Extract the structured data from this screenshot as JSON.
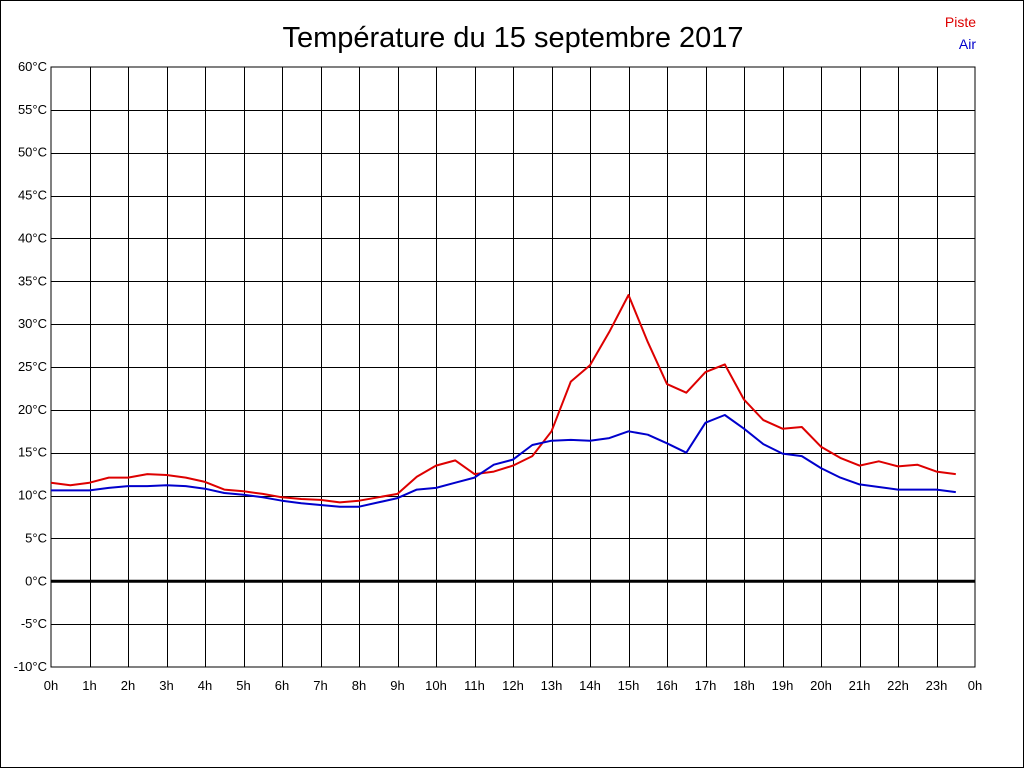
{
  "chart_data": {
    "type": "line",
    "title": "Température du 15 septembre 2017",
    "xlabel": "",
    "ylabel": "",
    "ylim": [
      -10,
      60
    ],
    "y_step": 5,
    "y_unit": "°C",
    "x_range": [
      0,
      24
    ],
    "x_tick_labels": [
      "0h",
      "1h",
      "2h",
      "3h",
      "4h",
      "5h",
      "6h",
      "7h",
      "8h",
      "9h",
      "10h",
      "11h",
      "12h",
      "13h",
      "14h",
      "15h",
      "16h",
      "17h",
      "18h",
      "19h",
      "20h",
      "21h",
      "22h",
      "23h",
      "0h"
    ],
    "y_tick_labels": [
      "60°C",
      "55°C",
      "50°C",
      "45°C",
      "40°C",
      "35°C",
      "30°C",
      "25°C",
      "20°C",
      "15°C",
      "10°C",
      "5°C",
      "0°C",
      "-5°C",
      "-10°C"
    ],
    "grid": true,
    "zero_line": true,
    "legend_position": "top-right",
    "x": [
      0,
      0.5,
      1,
      1.5,
      2,
      2.5,
      3,
      3.5,
      4,
      4.5,
      5,
      5.5,
      6,
      6.5,
      7,
      7.5,
      8,
      8.5,
      9,
      9.5,
      10,
      10.5,
      11,
      11.5,
      12,
      12.5,
      13,
      13.5,
      14,
      14.5,
      15,
      15.5,
      16,
      16.5,
      17,
      17.5,
      18,
      18.5,
      19,
      19.5,
      20,
      20.5,
      21,
      21.5,
      22,
      22.5,
      23,
      23.5
    ],
    "series": [
      {
        "name": "Piste",
        "color": "#dd0000",
        "values": [
          11.5,
          11.2,
          11.5,
          12.1,
          12.1,
          12.5,
          12.4,
          12.1,
          11.6,
          10.7,
          10.5,
          10.2,
          9.8,
          9.6,
          9.5,
          9.2,
          9.4,
          9.8,
          10.2,
          12.2,
          13.5,
          14.1,
          12.5,
          12.8,
          13.5,
          14.6,
          17.5,
          23.3,
          25.2,
          29.1,
          33.4,
          27.9,
          23.0,
          22.0,
          24.4,
          25.3,
          21.2,
          18.8,
          17.8,
          18.0,
          15.7,
          14.4,
          13.5,
          14.0,
          13.4,
          13.6,
          12.8,
          12.5
        ]
      },
      {
        "name": "Air",
        "color": "#0000cc",
        "values": [
          10.6,
          10.6,
          10.6,
          10.9,
          11.1,
          11.1,
          11.2,
          11.1,
          10.8,
          10.3,
          10.1,
          9.8,
          9.4,
          9.1,
          8.9,
          8.7,
          8.7,
          9.2,
          9.7,
          10.7,
          10.9,
          11.5,
          12.1,
          13.6,
          14.2,
          15.9,
          16.4,
          16.5,
          16.4,
          16.7,
          17.5,
          17.1,
          16.1,
          15.0,
          18.5,
          19.4,
          17.8,
          16.0,
          14.9,
          14.6,
          13.2,
          12.1,
          11.3,
          11.0,
          10.7,
          10.7,
          10.7,
          10.4
        ]
      }
    ]
  }
}
